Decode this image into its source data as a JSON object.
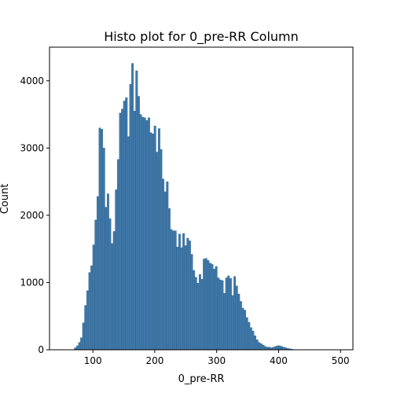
{
  "chart_data": {
    "type": "bar",
    "title": "Histo plot for 0_pre-RR Column",
    "xlabel": "0_pre-RR",
    "ylabel": "Count",
    "xlim": [
      30,
      520
    ],
    "ylim": [
      0,
      4500
    ],
    "xticks": [
      100,
      200,
      300,
      400,
      500
    ],
    "yticks": [
      0,
      1000,
      2000,
      3000,
      4000
    ],
    "bin_width": 3.3,
    "bins_start": 70,
    "colors": {
      "bar_fill": "#3f78a8",
      "bar_edge": "#2a5a84"
    },
    "values": [
      30,
      60,
      110,
      180,
      400,
      660,
      880,
      1150,
      1250,
      1560,
      1930,
      2280,
      3300,
      3280,
      3000,
      2120,
      2320,
      1950,
      1580,
      1760,
      2380,
      2830,
      3520,
      3580,
      3700,
      3750,
      3170,
      3950,
      4260,
      3550,
      4150,
      3770,
      3500,
      3460,
      3450,
      3410,
      3450,
      3230,
      3210,
      3330,
      2940,
      3290,
      2980,
      2540,
      2350,
      2500,
      2100,
      1790,
      1770,
      1770,
      1530,
      1720,
      1520,
      1730,
      1550,
      1660,
      1620,
      1420,
      1180,
      1080,
      990,
      1120,
      1050,
      1350,
      1360,
      1330,
      1290,
      1270,
      1200,
      1240,
      1070,
      1040,
      1030,
      840,
      1070,
      1100,
      1060,
      810,
      1090,
      950,
      830,
      720,
      620,
      590,
      480,
      410,
      330,
      280,
      210,
      150,
      110,
      90,
      70,
      50,
      40,
      40,
      30,
      40,
      50,
      60,
      60,
      50,
      40,
      30,
      20,
      15,
      10
    ]
  }
}
